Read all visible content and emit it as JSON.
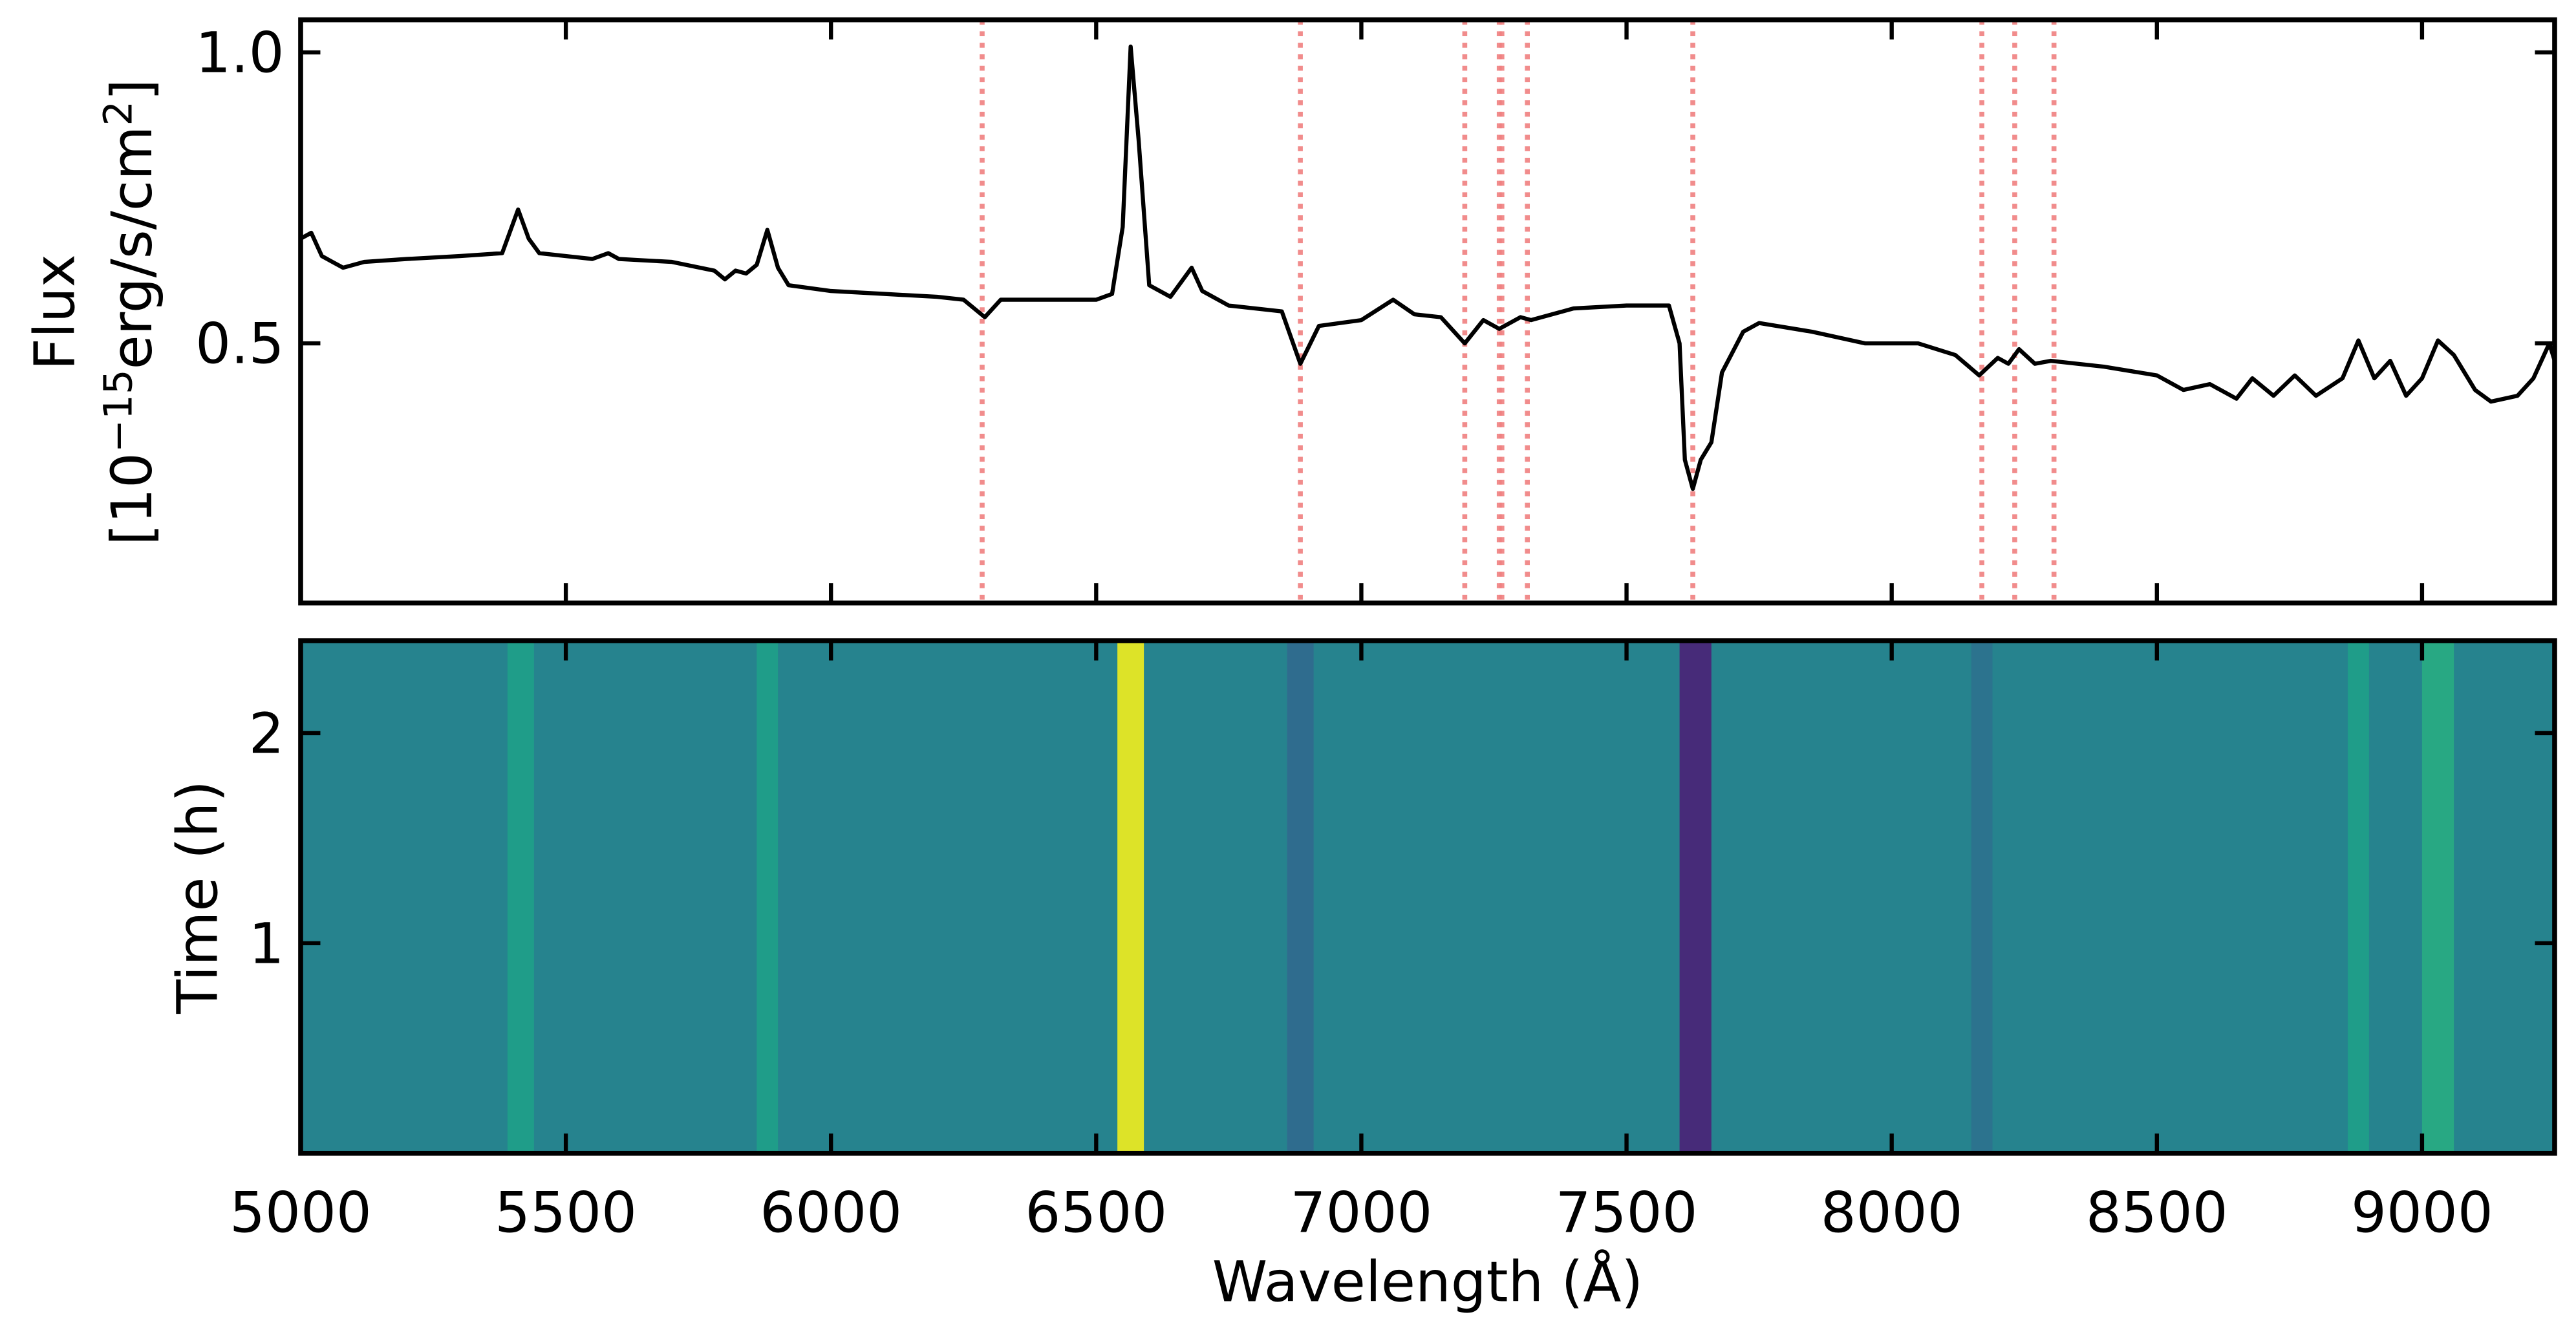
{
  "chart_data": [
    {
      "type": "line",
      "ylabel": {
        "line1": "Flux",
        "line2": [
          "[10",
          "−15",
          "erg/s/cm",
          "2",
          "]"
        ]
      },
      "color": "#000000",
      "x": [
        5000,
        5020,
        5040,
        5060,
        5080,
        5120,
        5200,
        5300,
        5380,
        5410,
        5430,
        5450,
        5550,
        5580,
        5600,
        5700,
        5780,
        5800,
        5820,
        5840,
        5860,
        5880,
        5900,
        5920,
        6000,
        6100,
        6200,
        6250,
        6290,
        6320,
        6400,
        6500,
        6530,
        6550,
        6565,
        6580,
        6600,
        6640,
        6680,
        6700,
        6750,
        6850,
        6885,
        6920,
        7000,
        7060,
        7100,
        7150,
        7195,
        7230,
        7260,
        7300,
        7320,
        7400,
        7500,
        7580,
        7600,
        7610,
        7625,
        7640,
        7660,
        7680,
        7720,
        7750,
        7850,
        7950,
        8050,
        8120,
        8165,
        8200,
        8220,
        8240,
        8270,
        8300,
        8350,
        8400,
        8500,
        8550,
        8600,
        8650,
        8680,
        8720,
        8760,
        8800,
        8850,
        8880,
        8910,
        8940,
        8970,
        9000,
        9030,
        9060,
        9100,
        9130,
        9180,
        9210,
        9240,
        9250
      ],
      "y": [
        0.68,
        0.69,
        0.65,
        0.64,
        0.63,
        0.64,
        0.645,
        0.65,
        0.655,
        0.73,
        0.68,
        0.655,
        0.645,
        0.655,
        0.645,
        0.64,
        0.625,
        0.61,
        0.625,
        0.62,
        0.635,
        0.695,
        0.63,
        0.6,
        0.59,
        0.585,
        0.58,
        0.575,
        0.545,
        0.575,
        0.575,
        0.575,
        0.585,
        0.7,
        1.01,
        0.85,
        0.6,
        0.58,
        0.63,
        0.59,
        0.565,
        0.555,
        0.465,
        0.53,
        0.54,
        0.575,
        0.55,
        0.545,
        0.5,
        0.54,
        0.525,
        0.545,
        0.54,
        0.56,
        0.565,
        0.565,
        0.5,
        0.3,
        0.25,
        0.3,
        0.33,
        0.45,
        0.52,
        0.535,
        0.52,
        0.5,
        0.5,
        0.48,
        0.445,
        0.475,
        0.465,
        0.49,
        0.465,
        0.47,
        0.465,
        0.46,
        0.445,
        0.42,
        0.43,
        0.405,
        0.44,
        0.41,
        0.445,
        0.41,
        0.44,
        0.505,
        0.44,
        0.47,
        0.41,
        0.44,
        0.505,
        0.48,
        0.42,
        0.4,
        0.41,
        0.44,
        0.5,
        0.47
      ],
      "xlim": [
        5000,
        9250
      ],
      "ylim": [
        0.054,
        1.056
      ],
      "xticks": [
        5000,
        5500,
        6000,
        6500,
        7000,
        7500,
        8000,
        8500,
        9000
      ],
      "xtick_labels": false,
      "yticks": [
        0.5,
        {
          "value": 1,
          "label": "1.0"
        }
      ],
      "vlines": {
        "color": "#f08080",
        "x": [
          6285,
          6885,
          7195,
          7260,
          7265,
          7313,
          7625,
          8170,
          8232,
          8306
        ]
      }
    },
    {
      "type": "heatmap",
      "xlabel": "Wavelength (Å)",
      "ylabel": "Time (h)",
      "bins": [
        5000,
        5390,
        5440,
        5860,
        5900,
        6540,
        6590,
        6860,
        6910,
        7600,
        7660,
        8150,
        8190,
        8860,
        8900,
        9000,
        9060,
        9250
      ],
      "z": [
        0.45,
        0.55,
        0.45,
        0.55,
        0.45,
        0.95,
        0.45,
        0.35,
        0.45,
        0.12,
        0.45,
        0.38,
        0.45,
        0.55,
        0.45,
        0.6,
        0.45
      ],
      "zlim": [
        0,
        1
      ],
      "colormap": "viridis",
      "xlim": [
        5000,
        9250
      ],
      "ylim": [
        0,
        2.44
      ],
      "xticks": [
        5000,
        5500,
        6000,
        6500,
        7000,
        7500,
        8000,
        8500,
        9000
      ],
      "xtick_labels": true,
      "yticks": [
        1,
        2
      ]
    }
  ]
}
